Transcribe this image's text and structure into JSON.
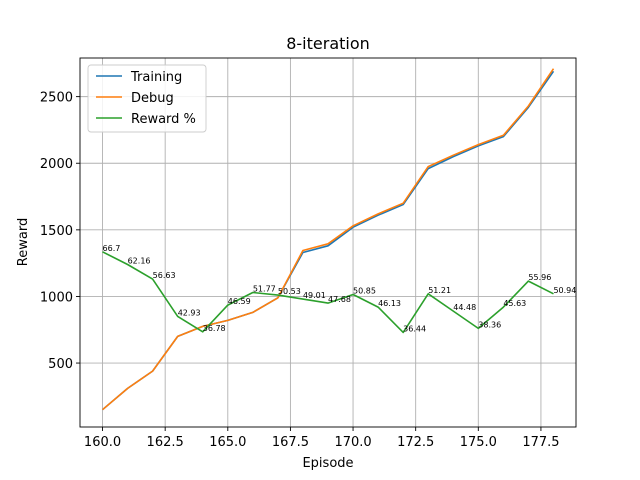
{
  "chart_data": {
    "type": "line",
    "title": "8-iteration",
    "xlabel": "Episode",
    "ylabel": "Reward",
    "xlim": [
      159.1,
      178.9
    ],
    "ylim": [
      20,
      2790
    ],
    "xticks": [
      160.0,
      162.5,
      165.0,
      167.5,
      170.0,
      172.5,
      175.0,
      177.5
    ],
    "xtick_labels": [
      "160.0",
      "162.5",
      "165.0",
      "167.5",
      "170.0",
      "172.5",
      "175.0",
      "177.5"
    ],
    "yticks": [
      500,
      1000,
      1500,
      2000,
      2500
    ],
    "ytick_labels": [
      "500",
      "1000",
      "1500",
      "2000",
      "2500"
    ],
    "grid": true,
    "legend_position": "top-left",
    "x": [
      160,
      161,
      162,
      163,
      164,
      165,
      166,
      167,
      168,
      169,
      170,
      171,
      172,
      173,
      174,
      175,
      176,
      177,
      178
    ],
    "series": [
      {
        "name": "Training",
        "color": "#1f77b4",
        "values": [
          150,
          310,
          440,
          700,
          775,
          820,
          880,
          990,
          1330,
          1380,
          1520,
          1610,
          1690,
          1960,
          2050,
          2130,
          2200,
          2420,
          2690
        ]
      },
      {
        "name": "Debug",
        "color": "#ff7f0e",
        "values": [
          150,
          310,
          440,
          700,
          775,
          820,
          880,
          990,
          1345,
          1395,
          1530,
          1620,
          1700,
          1975,
          2060,
          2140,
          2210,
          2430,
          2710
        ]
      },
      {
        "name": "Reward %",
        "color": "#2ca02c",
        "values": [
          1335,
          1240,
          1130,
          850,
          735,
          935,
          1030,
          1010,
          980,
          950,
          1015,
          920,
          730,
          1020,
          890,
          760,
          920,
          1115,
          1020
        ],
        "labels": [
          "66.7",
          "62.16",
          "56.63",
          "42.93",
          "36.78",
          "46.59",
          "51.77",
          "50.53",
          "49.01",
          "47.68",
          "50.85",
          "46.13",
          "36.44",
          "51.21",
          "44.48",
          "38.36",
          "45.63",
          "55.96",
          "50.94"
        ]
      }
    ]
  }
}
